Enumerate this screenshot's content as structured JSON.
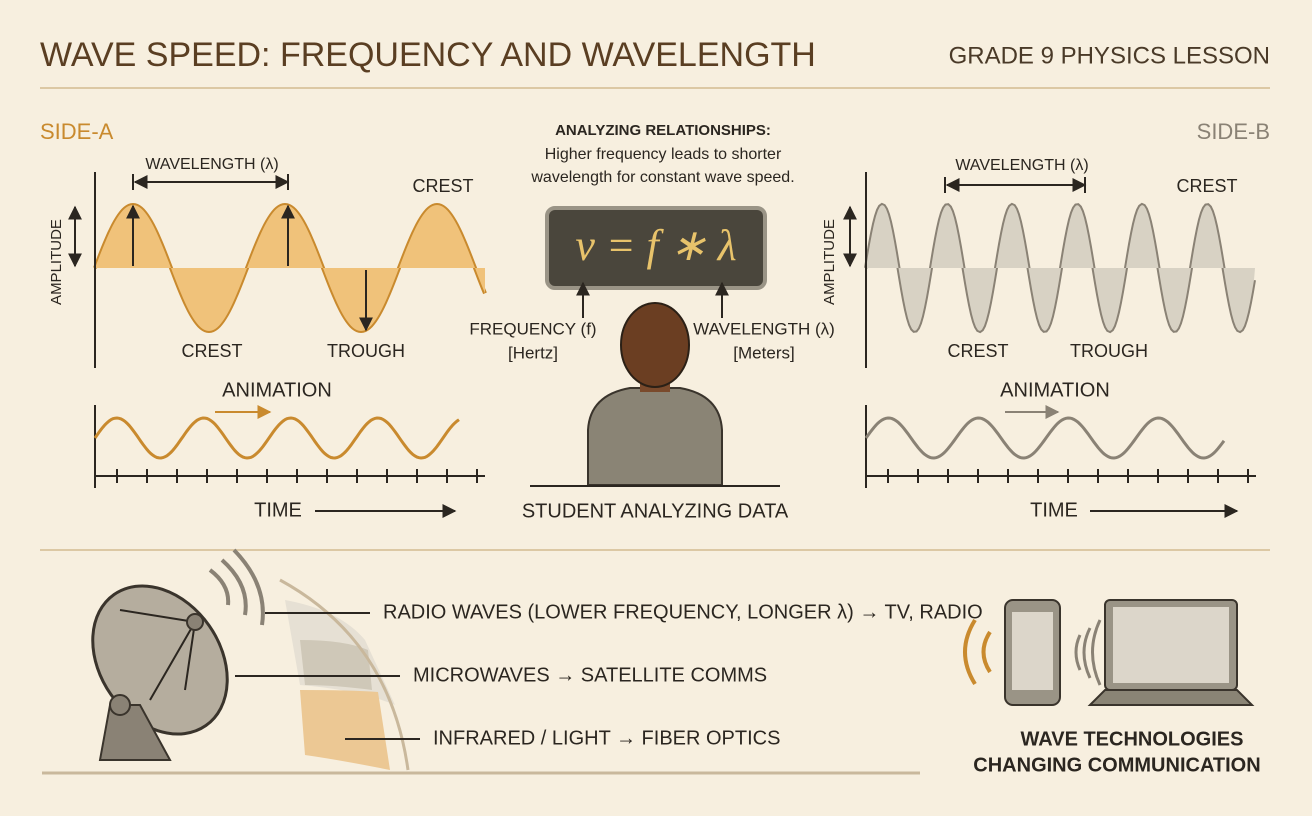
{
  "header": {
    "title": "WAVE SPEED: FREQUENCY AND WAVELENGTH",
    "subtitle": "GRADE 9 PHYSICS LESSON"
  },
  "side_a": {
    "label": "SIDE-A",
    "wavelength": "WAVELENGTH (λ)",
    "amplitude": "AMPLITUDE",
    "crest_top": "CREST",
    "crest_bottom": "CREST",
    "trough": "TROUGH",
    "animation": "ANIMATION",
    "time": "TIME"
  },
  "side_b": {
    "label": "SIDE-B",
    "wavelength": "WAVELENGTH (λ)",
    "amplitude": "AMPLITUDE",
    "crest_top": "CREST",
    "crest_bottom": "CREST",
    "trough": "TROUGH",
    "animation": "ANIMATION",
    "time": "TIME"
  },
  "center": {
    "heading": "ANALYZING RELATIONSHIPS:",
    "text_lines": [
      "Higher frequency leads to shorter",
      "wavelength for constant wave speed."
    ],
    "formula": "ν = f ∗ λ",
    "frequency": "FREQUENCY (f)",
    "frequency_unit": "[Hertz]",
    "wavelength": "WAVELENGTH (λ)",
    "wavelength_unit": "[Meters]",
    "caption": "STUDENT ANALYZING DATA"
  },
  "spectrum": {
    "items": [
      "RADIO WAVES (LOWER FREQUENCY, LONGER λ) → TV, RADIO",
      "MICROWAVES → SATELLITE COMMS",
      "INFRARED / LIGHT → FIBER OPTICS"
    ]
  },
  "technologies": {
    "caption_lines": [
      "WAVE TECHNOLOGIES",
      "CHANGING COMMUNICATION"
    ]
  }
}
